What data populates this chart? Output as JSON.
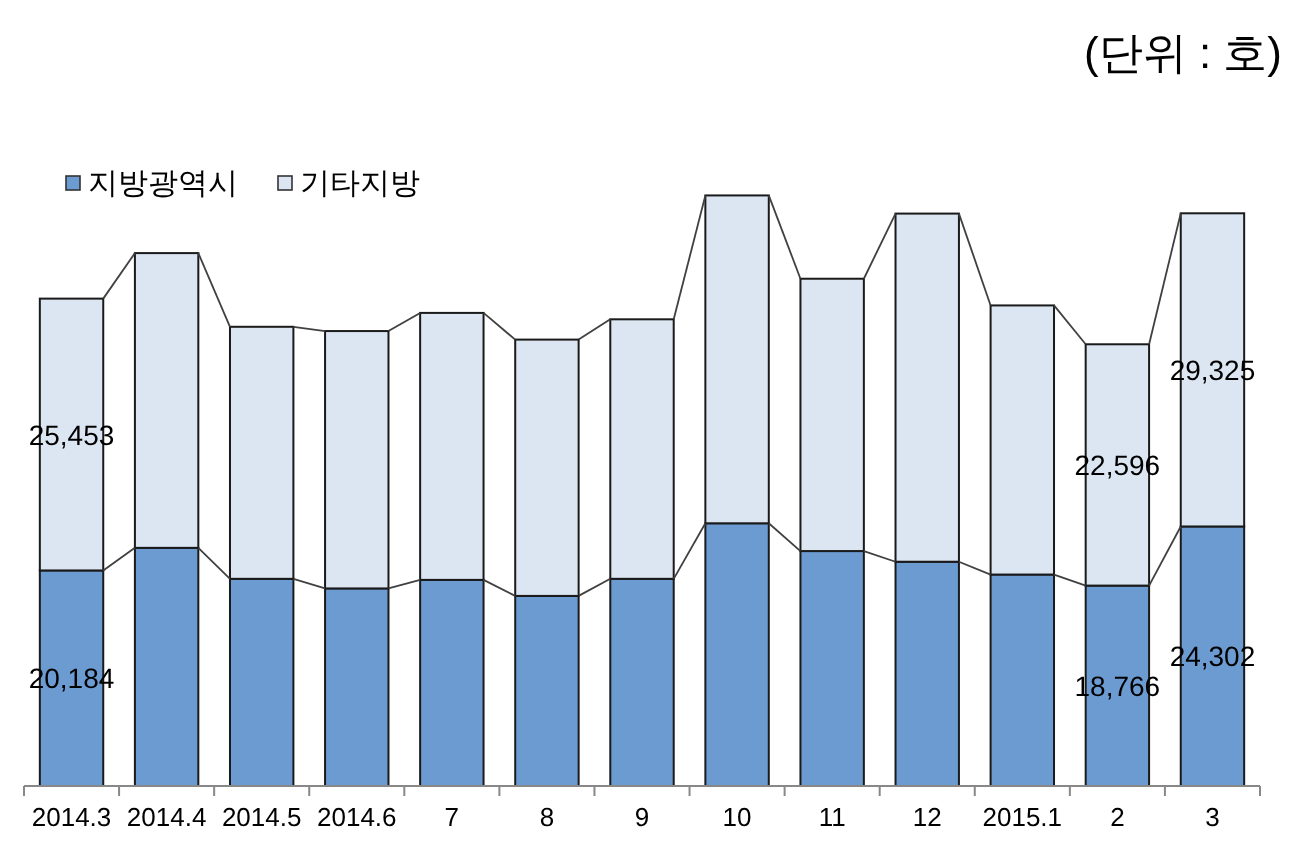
{
  "chart_data": {
    "type": "bar",
    "stacked": true,
    "legend": "top left",
    "annotations": [
      "(단위 : 호)"
    ],
    "categories": [
      "2014.3",
      "2014.4",
      "2014.5",
      "2014.6",
      "7",
      "8",
      "9",
      "10",
      "11",
      "12",
      "2015.1",
      "2",
      "3"
    ],
    "series": [
      {
        "name": "지방광역시",
        "color": "#6b9bd1",
        "values": [
          20184,
          22300,
          19400,
          18500,
          19300,
          17800,
          19400,
          24600,
          22000,
          21000,
          19800,
          18766,
          24302
        ],
        "value_labels": [
          "20,184",
          null,
          null,
          null,
          null,
          null,
          null,
          null,
          null,
          null,
          null,
          "18,766",
          "24,302"
        ]
      },
      {
        "name": "기타지방",
        "color": "#dce6f2",
        "values": [
          25453,
          27600,
          23600,
          24100,
          25000,
          24000,
          24300,
          30700,
          25500,
          32600,
          25200,
          22596,
          29325
        ],
        "value_labels": [
          "25,453",
          null,
          null,
          null,
          null,
          null,
          null,
          null,
          null,
          null,
          null,
          "22,596",
          "29,325"
        ]
      }
    ]
  }
}
